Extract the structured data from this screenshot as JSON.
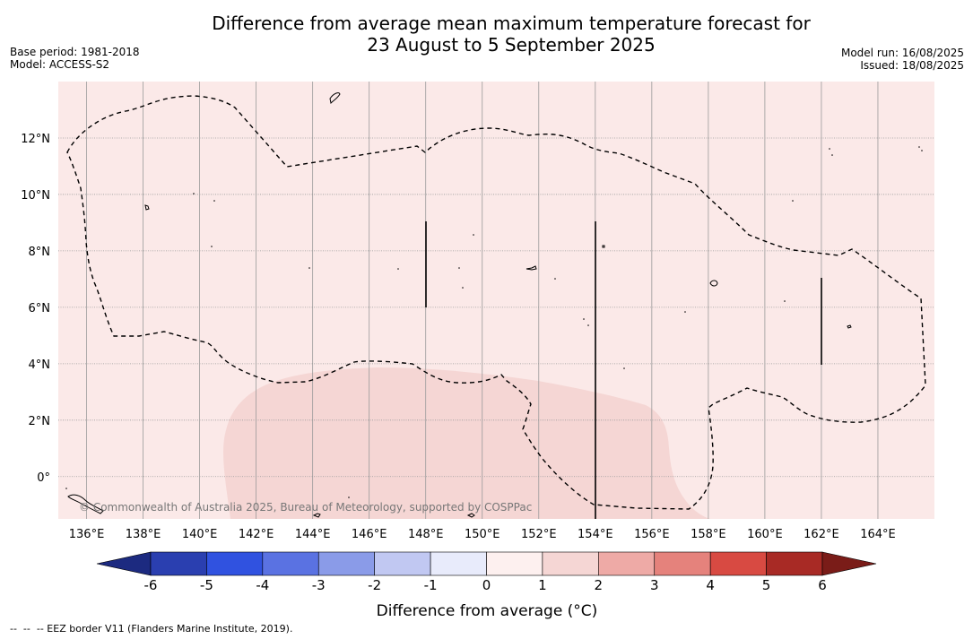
{
  "title": {
    "line1": "Difference from average mean maximum temperature forecast for",
    "line2": "23 August to 5 September 2025"
  },
  "meta_left": {
    "base_period": "Base period: 1981-2018",
    "model": "Model: ACCESS-S2"
  },
  "meta_right": {
    "model_run": "Model run: 16/08/2025",
    "issued": "Issued: 18/08/2025"
  },
  "map": {
    "lon_range": [
      135,
      166
    ],
    "lat_range": [
      -1.5,
      14
    ],
    "lon_ticks": [
      "136°E",
      "138°E",
      "140°E",
      "142°E",
      "144°E",
      "146°E",
      "148°E",
      "150°E",
      "152°E",
      "154°E",
      "156°E",
      "158°E",
      "160°E",
      "162°E",
      "164°E"
    ],
    "lat_ticks": [
      "12°N",
      "10°N",
      "8°N",
      "6°N",
      "4°N",
      "2°N",
      "0°"
    ],
    "background_category": "0 to 1",
    "background_color": "#fbe9e8",
    "anomaly_region_category": "1 to 2",
    "anomaly_region_color": "#f5d6d4",
    "grid": true,
    "copyright": "© Commonwealth of Australia 2025, Bureau of Meteorology, supported by COSPPac"
  },
  "colorbar": {
    "label": "Difference from average (°C)",
    "ticks": [
      "-6",
      "-5",
      "-4",
      "-3",
      "-2",
      "-1",
      "0",
      "1",
      "2",
      "3",
      "4",
      "5",
      "6"
    ],
    "colors": [
      "#2a3fb0",
      "#3052e0",
      "#5a72e2",
      "#8a9be8",
      "#c1c8f2",
      "#e8ebfb",
      "#fdf0ef",
      "#f5d6d4",
      "#eeaaa6",
      "#e5827c",
      "#d84a42",
      "#a82a25"
    ],
    "under_color": "#1c2a80",
    "over_color": "#7a1c18"
  },
  "footnote": "--  --  -- EEZ border V11 (Flanders Marine Institute, 2019)."
}
